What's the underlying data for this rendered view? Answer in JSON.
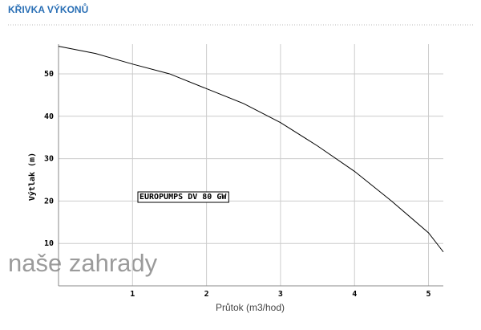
{
  "header": {
    "title": "KŘIVKA VÝKONŮ"
  },
  "watermark": "naše zahrady",
  "chart_data": {
    "type": "line",
    "x_label": "Průtok (m3/hod)",
    "y_label": "Výtlak (m)",
    "annotation": "EUROPUMPS DV 80 GW",
    "x": [
      0,
      0.5,
      1,
      1.5,
      2,
      2.5,
      3,
      3.5,
      4,
      4.5,
      5,
      5.2
    ],
    "series": [
      {
        "color": "#000000",
        "values": [
          56.5,
          54.8,
          52.3,
          50,
          46.5,
          43,
          38.5,
          33,
          27,
          20,
          12.5,
          8
        ]
      }
    ],
    "xlim": [
      0,
      5.2
    ],
    "xticks": [
      1,
      2,
      3,
      4,
      5
    ],
    "ylim": [
      0,
      57
    ],
    "yticks": [
      10,
      20,
      30,
      40,
      50
    ],
    "grid": true
  }
}
